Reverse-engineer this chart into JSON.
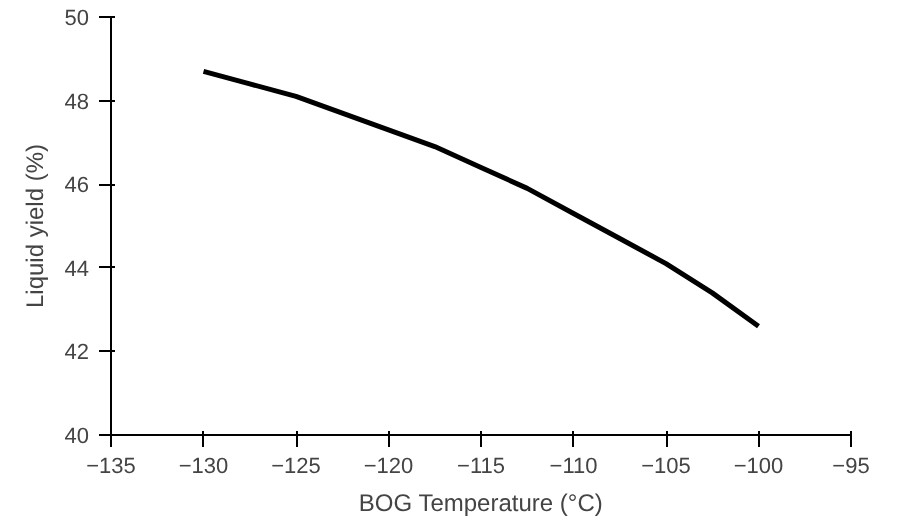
{
  "chart_data": {
    "type": "line",
    "xlabel": "BOG Temperature (°C)",
    "ylabel": "Liquid yield (%)",
    "x": [
      -130,
      -127.5,
      -125,
      -122.5,
      -120,
      -117.5,
      -115,
      -112.5,
      -110,
      -107.5,
      -105,
      -102.5,
      -100
    ],
    "series": [
      {
        "color": "#000000",
        "values": [
          48.7,
          48.4,
          48.1,
          47.7,
          47.3,
          46.9,
          46.4,
          45.9,
          45.3,
          44.7,
          44.1,
          43.4,
          42.6
        ]
      }
    ],
    "xlim": [
      -135,
      -95
    ],
    "xticks": [
      -135,
      -130,
      -125,
      -120,
      -115,
      -110,
      -105,
      -100,
      -95
    ],
    "ylim": [
      40,
      50
    ],
    "yticks": [
      40,
      42,
      44,
      46,
      48,
      50
    ],
    "grid": false,
    "marker": "none",
    "line_style": "solid"
  }
}
